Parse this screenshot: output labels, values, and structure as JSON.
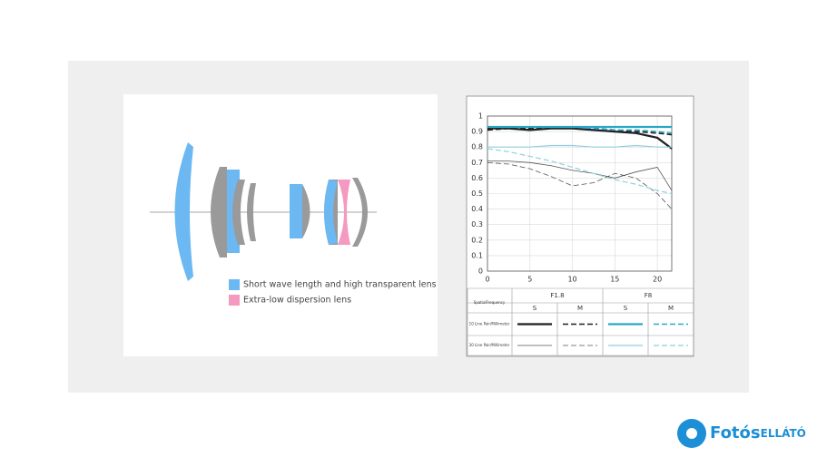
{
  "chart_data": {
    "type": "line",
    "x": [
      0,
      2.5,
      5,
      7.5,
      10,
      12.5,
      15,
      17.5,
      20,
      21.7
    ],
    "xlim": [
      0,
      21.7
    ],
    "xticks": [
      0,
      5,
      10,
      15,
      20
    ],
    "ylim": [
      0,
      1
    ],
    "yticks": [
      0,
      0.1,
      0.2,
      0.3,
      0.4,
      0.5,
      0.6,
      0.7,
      0.8,
      0.9,
      1
    ],
    "grid": true,
    "series": [
      {
        "color": "#1f1f1f",
        "width": 2.2,
        "dash": false,
        "values": [
          0.92,
          0.92,
          0.91,
          0.92,
          0.92,
          0.91,
          0.9,
          0.89,
          0.86,
          0.79
        ]
      },
      {
        "color": "#1f1f1f",
        "width": 1.6,
        "dash": true,
        "values": [
          0.91,
          0.92,
          0.92,
          0.93,
          0.93,
          0.92,
          0.91,
          0.9,
          0.89,
          0.88
        ]
      },
      {
        "color": "#2aa6c9",
        "width": 2.2,
        "dash": false,
        "values": [
          0.93,
          0.93,
          0.93,
          0.93,
          0.93,
          0.93,
          0.93,
          0.93,
          0.93,
          0.93
        ]
      },
      {
        "color": "#2aa6c9",
        "width": 1.6,
        "dash": true,
        "values": [
          0.93,
          0.93,
          0.93,
          0.93,
          0.93,
          0.92,
          0.91,
          0.91,
          0.9,
          0.89
        ]
      },
      {
        "color": "#555555",
        "width": 0.8,
        "dash": false,
        "values": [
          0.71,
          0.71,
          0.7,
          0.68,
          0.65,
          0.63,
          0.6,
          0.64,
          0.67,
          0.52
        ]
      },
      {
        "color": "#555555",
        "width": 0.8,
        "dash": true,
        "values": [
          0.7,
          0.69,
          0.66,
          0.61,
          0.55,
          0.57,
          0.63,
          0.6,
          0.5,
          0.4
        ]
      },
      {
        "color": "#8fcfe0",
        "width": 1.2,
        "dash": false,
        "values": [
          0.8,
          0.8,
          0.8,
          0.81,
          0.81,
          0.8,
          0.8,
          0.81,
          0.8,
          0.8
        ]
      },
      {
        "color": "#8fcfe0",
        "width": 1.2,
        "dash": true,
        "values": [
          0.79,
          0.77,
          0.74,
          0.71,
          0.67,
          0.63,
          0.59,
          0.56,
          0.52,
          0.5
        ]
      }
    ]
  },
  "legend_table": {
    "corner": "SpatialFrequency",
    "apertures": [
      "F1.8",
      "F8"
    ],
    "types": [
      "S",
      "M",
      "S",
      "M"
    ],
    "rows": [
      "10 Line Pair/Millimeter",
      "30 Line Pair/Millimeter"
    ]
  },
  "lens_legend": [
    {
      "label": "Short wave length and high transparent lens",
      "color": "#6cb8f2"
    },
    {
      "label": "Extra-low dispersion lens",
      "color": "#f49ac1"
    }
  ],
  "logo": {
    "main": "Fotós",
    "sub": "ELLÁTÓ"
  }
}
